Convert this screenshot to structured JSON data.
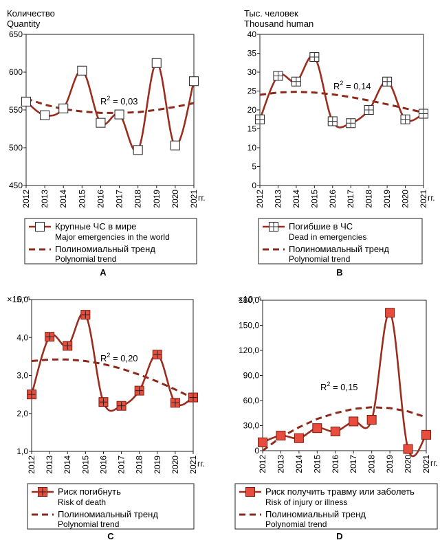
{
  "colors": {
    "series": "#9b2d1f",
    "trend": "#8b2a1a",
    "marker_fill_cd": "#e74c3c"
  },
  "year_suffix": "гг.",
  "chart_data": [
    {
      "panel": "A",
      "type": "line",
      "ylabel_ru": "Количество",
      "ylabel_en": "Quantity",
      "exponent": "",
      "ylim": [
        450,
        650
      ],
      "yticks": [
        450,
        500,
        550,
        600,
        650
      ],
      "ytick_labels": [
        "450",
        "500",
        "550",
        "600",
        "650"
      ],
      "categories": [
        "2012",
        "2013",
        "2014",
        "2015",
        "2016",
        "2017",
        "2018",
        "2019",
        "2020",
        "2021"
      ],
      "marker": "square",
      "series": [
        {
          "name": "Крупные ЧС в мире",
          "name_en": "Major emergencies in the world",
          "values": [
            561,
            543,
            552,
            602,
            533,
            544,
            497,
            612,
            503,
            588
          ]
        }
      ],
      "trend": {
        "name": "Полиномиальный тренд",
        "name_en": "Polynomial trend",
        "values": [
          565,
          557,
          551,
          548,
          546,
          546,
          547,
          550,
          554,
          559
        ]
      },
      "r2": "0,03"
    },
    {
      "panel": "B",
      "type": "line",
      "ylabel_ru": "Тыс. человек",
      "ylabel_en": "Thousand human",
      "exponent": "",
      "ylim": [
        0,
        40
      ],
      "yticks": [
        0,
        5,
        10,
        15,
        20,
        25,
        30,
        35,
        40
      ],
      "ytick_labels": [
        "0",
        "5",
        "10",
        "15",
        "20",
        "25",
        "30",
        "35",
        "40"
      ],
      "categories": [
        "2012",
        "2013",
        "2014",
        "2015",
        "2016",
        "2017",
        "2018",
        "2019",
        "2020",
        "2021"
      ],
      "marker": "square-cross",
      "series": [
        {
          "name": "Погибшие в ЧС",
          "name_en": "Dead in emergencies",
          "values": [
            17.5,
            29,
            27.5,
            34,
            17,
            16.5,
            20,
            27.5,
            17.5,
            19
          ]
        }
      ],
      "trend": {
        "name": "Полиномиальный тренд",
        "name_en": "Polynomial trend",
        "values": [
          24,
          24.6,
          24.8,
          24.6,
          24.1,
          23.4,
          22.5,
          21.5,
          20.4,
          19.3
        ]
      },
      "r2": "0,14"
    },
    {
      "panel": "C",
      "type": "line",
      "ylabel_ru": "",
      "ylabel_en": "",
      "exponent": "×10⁻⁶",
      "ylim": [
        1.0,
        5.0
      ],
      "yticks": [
        1.0,
        2.0,
        3.0,
        4.0,
        5.0
      ],
      "ytick_labels": [
        "1,0",
        "2,0",
        "3,0",
        "4,0",
        "5,0"
      ],
      "categories": [
        "2012",
        "2013",
        "2014",
        "2015",
        "2016",
        "2017",
        "2018",
        "2019",
        "2020",
        "2021"
      ],
      "marker": "square-plus-filled",
      "series": [
        {
          "name": "Риск погибнуть",
          "name_en": "Risk of death",
          "values": [
            2.5,
            4.02,
            3.78,
            4.6,
            2.3,
            2.2,
            2.6,
            3.55,
            2.28,
            2.42
          ]
        }
      ],
      "trend": {
        "name": "Полиномиальный тренд",
        "name_en": "Polynomial trend",
        "values": [
          3.38,
          3.42,
          3.42,
          3.38,
          3.3,
          3.18,
          3.02,
          2.84,
          2.63,
          2.4
        ]
      },
      "r2": "0,20"
    },
    {
      "panel": "D",
      "type": "line",
      "ylabel_ru": "",
      "ylabel_en": "",
      "exponent": "×10⁻⁶",
      "ylim": [
        0,
        180
      ],
      "yticks": [
        0,
        30,
        60,
        90,
        120,
        150,
        180
      ],
      "ytick_labels": [
        "0",
        "30,0",
        "60,0",
        "90,0",
        "120,0",
        "150,0",
        "180,0"
      ],
      "categories": [
        "2012",
        "2013",
        "2014",
        "2015",
        "2016",
        "2017",
        "2018",
        "2019",
        "2020",
        "2021"
      ],
      "marker": "square-filled",
      "series": [
        {
          "name": "Риск получить травму или заболеть",
          "name_en": "Risk of injury or illness",
          "values": [
            10,
            18,
            15,
            27,
            23,
            35,
            37,
            165,
            2,
            19
          ]
        }
      ],
      "trend": {
        "name": "Полиномиальный тренд",
        "name_en": "Polynomial trend",
        "values": [
          0,
          16,
          28,
          38,
          45,
          50,
          52,
          51,
          47,
          40
        ]
      },
      "r2": "0,15"
    }
  ]
}
